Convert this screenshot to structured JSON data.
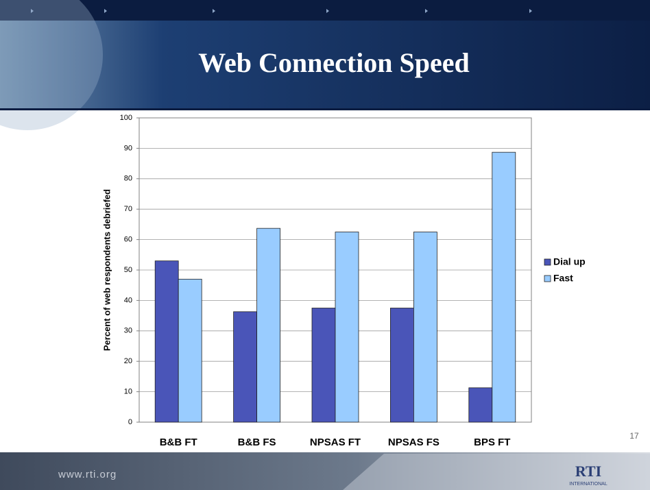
{
  "slide": {
    "page_number": "17",
    "footer_url": "www.rti.org",
    "logo": "RTI",
    "logo_subtitle": "INTERNATIONAL"
  },
  "chart_data": {
    "type": "bar",
    "title": "Web Connection Speed",
    "y_label": "Percent of web respondents debriefed",
    "categories": [
      "B&B FT",
      "B&B FS",
      "NPSAS FT",
      "NPSAS FS",
      "BPS FT"
    ],
    "series": [
      {
        "name": "Dial up",
        "color": "#4a55b8",
        "values": [
          53,
          36.3,
          37.5,
          37.5,
          11.3
        ]
      },
      {
        "name": "Fast",
        "color": "#99ccff",
        "values": [
          47,
          63.7,
          62.5,
          62.5,
          88.7
        ]
      }
    ],
    "ylim": [
      0,
      100
    ],
    "yticks": [
      0,
      10,
      20,
      30,
      40,
      50,
      60,
      70,
      80,
      90,
      100
    ],
    "grid": true,
    "legend": "right"
  }
}
